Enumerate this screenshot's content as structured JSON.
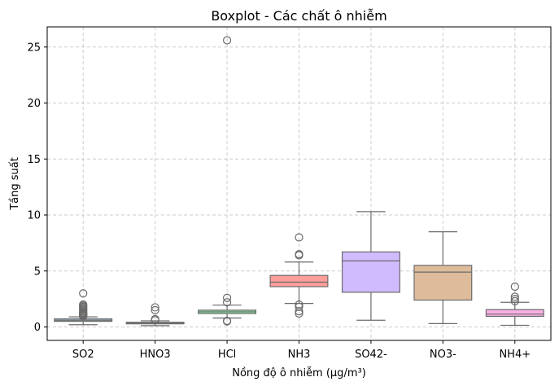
{
  "chart_data": {
    "type": "boxplot",
    "title": "Boxplot - Các chất ô nhiễm",
    "xlabel": "Nồng độ ô nhiễm (µg/m³)",
    "ylabel": "Tầng suất",
    "ylim": [
      -1.2,
      26.8
    ],
    "yticks": [
      0,
      5,
      10,
      15,
      20,
      25
    ],
    "grid": true,
    "colors": {
      "box_edge": "#6b6b6b",
      "grid": "#cccccc",
      "fliers_edge": "#6b6b6b"
    },
    "series": [
      {
        "category": "SO2",
        "color": "#a1c9f4",
        "q1": 0.5,
        "median": 0.6,
        "q3": 0.72,
        "whisker_low": 0.2,
        "whisker_high": 0.9,
        "outliers": [
          0.95,
          1.0,
          1.05,
          1.1,
          1.15,
          1.2,
          1.25,
          1.3,
          1.4,
          1.5,
          1.6,
          1.7,
          1.8,
          1.9,
          2.0,
          3.0
        ]
      },
      {
        "category": "HNO3",
        "color": "#b0dca3",
        "q1": 0.28,
        "median": 0.34,
        "q3": 0.42,
        "whisker_low": 0.12,
        "whisker_high": 0.55,
        "outliers": [
          0.6,
          0.7,
          1.5,
          1.75
        ]
      },
      {
        "category": "HCl",
        "color": "#8de5a1",
        "q1": 1.2,
        "median": 1.35,
        "q3": 1.5,
        "whisker_low": 0.8,
        "whisker_high": 1.95,
        "outliers": [
          0.5,
          0.55,
          2.2,
          2.6,
          25.6
        ]
      },
      {
        "category": "NH3",
        "color": "#ff9f9b",
        "q1": 3.6,
        "median": 4.0,
        "q3": 4.6,
        "whisker_low": 2.1,
        "whisker_high": 5.8,
        "outliers": [
          1.2,
          1.4,
          1.8,
          2.0,
          6.4,
          6.5,
          8.0
        ]
      },
      {
        "category": "SO42-",
        "color": "#d0bbff",
        "q1": 3.1,
        "median": 5.9,
        "q3": 6.7,
        "whisker_low": 0.6,
        "whisker_high": 10.3,
        "outliers": []
      },
      {
        "category": "NO3-",
        "color": "#debb9b",
        "q1": 2.4,
        "median": 4.9,
        "q3": 5.5,
        "whisker_low": 0.3,
        "whisker_high": 8.5,
        "outliers": []
      },
      {
        "category": "NH4+",
        "color": "#fab0e4",
        "q1": 0.95,
        "median": 1.15,
        "q3": 1.55,
        "whisker_low": 0.15,
        "whisker_high": 2.2,
        "outliers": [
          2.3,
          2.5,
          2.7,
          3.6
        ]
      }
    ]
  }
}
